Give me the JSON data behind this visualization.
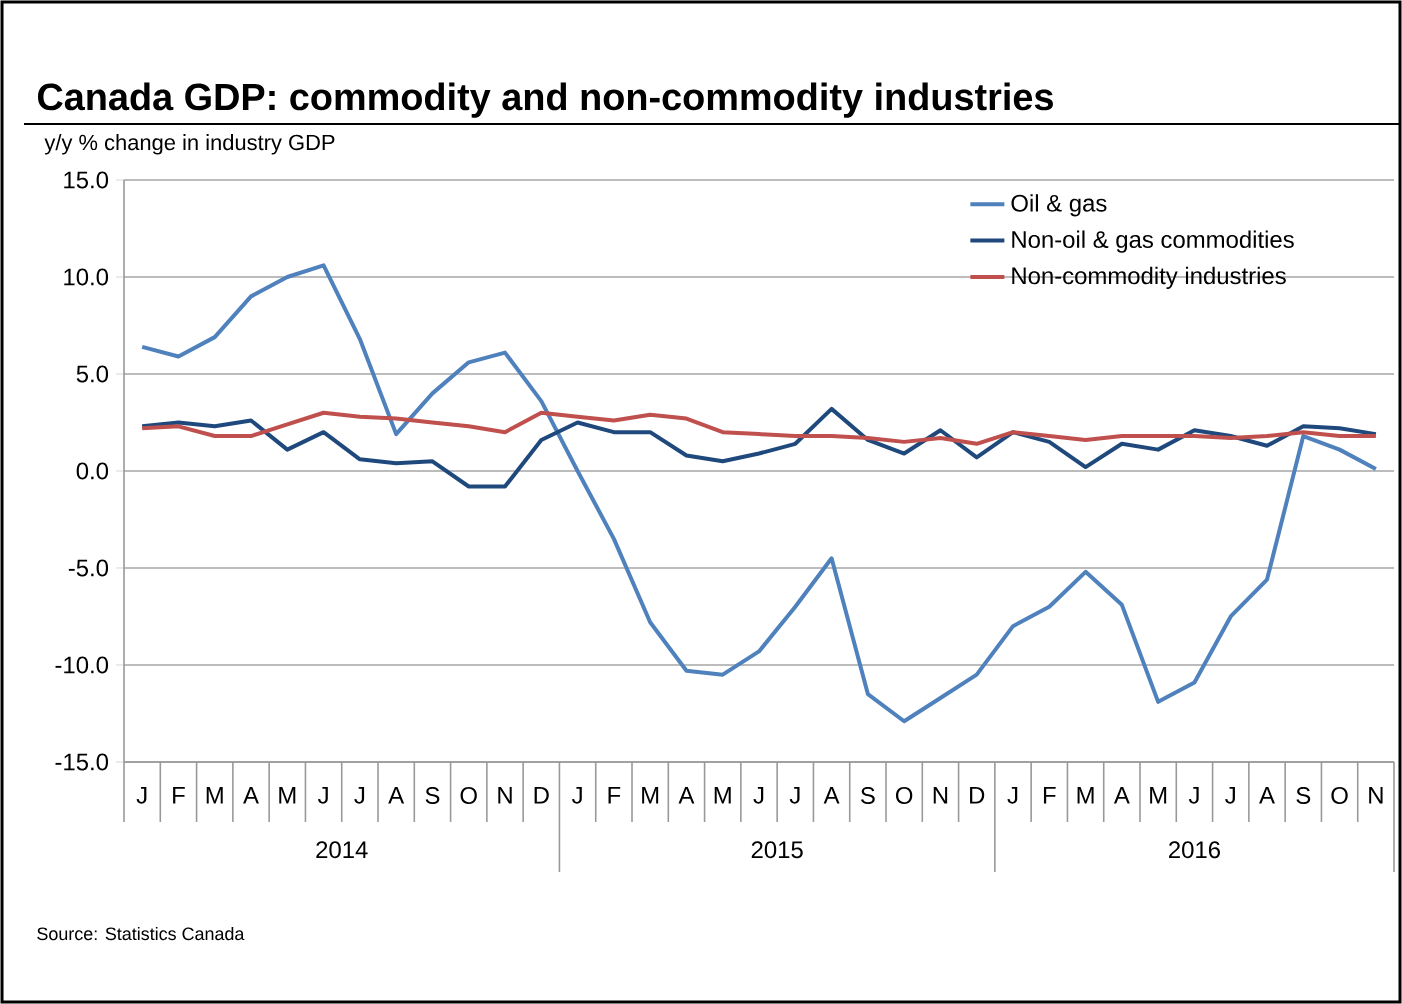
{
  "chart_data": {
    "type": "line",
    "title": "Canada GDP: commodity and non-commodity industries",
    "ylabel": "y/y % change in industry GDP",
    "categories": [
      "J",
      "F",
      "M",
      "A",
      "M",
      "J",
      "J",
      "A",
      "S",
      "O",
      "N",
      "D",
      "J",
      "F",
      "M",
      "A",
      "M",
      "J",
      "J",
      "A",
      "S",
      "O",
      "N",
      "D",
      "J",
      "F",
      "M",
      "A",
      "M",
      "J",
      "J",
      "A",
      "S",
      "O",
      "N"
    ],
    "series": [
      {
        "name": "Oil & gas",
        "color": "#4f81bd",
        "values": [
          6.4,
          5.9,
          6.9,
          9.0,
          10.0,
          10.6,
          6.8,
          1.9,
          4.0,
          5.6,
          6.1,
          3.6,
          0.0,
          -3.5,
          -7.8,
          -10.3,
          -10.5,
          -9.3,
          -7.0,
          -4.5,
          -11.5,
          -12.9,
          -11.7,
          -10.5,
          -8.0,
          -7.0,
          -5.2,
          -6.9,
          -11.9,
          -10.9,
          -7.5,
          -5.6,
          1.8,
          1.1,
          0.1
        ]
      },
      {
        "name": "Non-oil & gas commodities",
        "color": "#1f497d",
        "values": [
          2.3,
          2.5,
          2.3,
          2.6,
          1.1,
          2.0,
          0.6,
          0.4,
          0.5,
          -0.8,
          -0.8,
          1.6,
          2.5,
          2.0,
          2.0,
          0.8,
          0.5,
          0.9,
          1.4,
          3.2,
          1.6,
          0.9,
          2.1,
          0.7,
          2.0,
          1.5,
          0.2,
          1.4,
          1.1,
          2.1,
          1.8,
          1.3,
          2.3,
          2.2,
          1.9
        ]
      },
      {
        "name": "Non-commodity industries",
        "color": "#c0504d",
        "values": [
          2.2,
          2.3,
          1.8,
          1.8,
          2.4,
          3.0,
          2.8,
          2.7,
          2.5,
          2.3,
          2.0,
          3.0,
          2.8,
          2.6,
          2.9,
          2.7,
          2.0,
          1.9,
          1.8,
          1.8,
          1.7,
          1.5,
          1.7,
          1.4,
          2.0,
          1.8,
          1.6,
          1.8,
          1.8,
          1.8,
          1.7,
          1.8,
          2.0,
          1.8,
          1.8
        ]
      }
    ],
    "ylim": [
      -15,
      15
    ],
    "yticks": [
      {
        "value": -15,
        "label": "-15.0"
      },
      {
        "value": -10,
        "label": "-10.0"
      },
      {
        "value": -5,
        "label": "-5.0"
      },
      {
        "value": 0,
        "label": "0.0"
      },
      {
        "value": 5,
        "label": "5.0"
      },
      {
        "value": 10,
        "label": "10.0"
      },
      {
        "value": 15,
        "label": "15.0"
      }
    ],
    "grid": "y",
    "legend": "top right",
    "marker": "none",
    "line_style": "solid",
    "annotations": [
      "2014",
      "2015",
      "2016",
      "Source: Statistics Canada"
    ]
  }
}
